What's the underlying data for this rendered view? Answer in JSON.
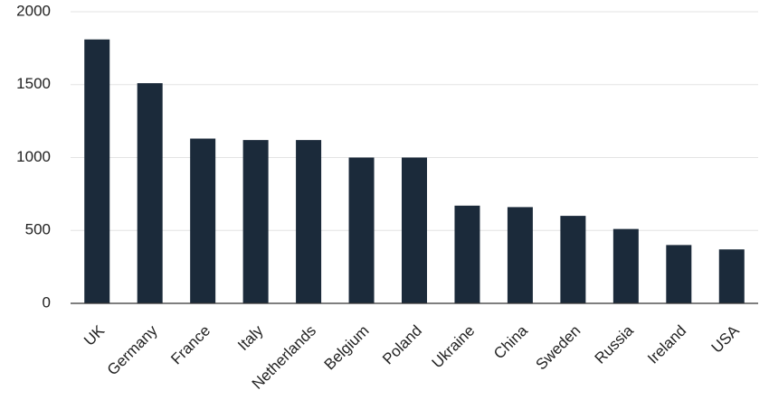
{
  "chart_data": {
    "type": "bar",
    "categories": [
      "UK",
      "Germany",
      "France",
      "Italy",
      "Netherlands",
      "Belgium",
      "Poland",
      "Ukraine",
      "China",
      "Sweden",
      "Russia",
      "Ireland",
      "USA"
    ],
    "values": [
      1810,
      1510,
      1130,
      1120,
      1120,
      1000,
      1000,
      670,
      660,
      600,
      510,
      400,
      370
    ],
    "color": "#1b2a3a",
    "ylim": [
      0,
      2000
    ],
    "yticks": [
      0,
      500,
      1000,
      1500,
      2000
    ],
    "grid": true
  }
}
